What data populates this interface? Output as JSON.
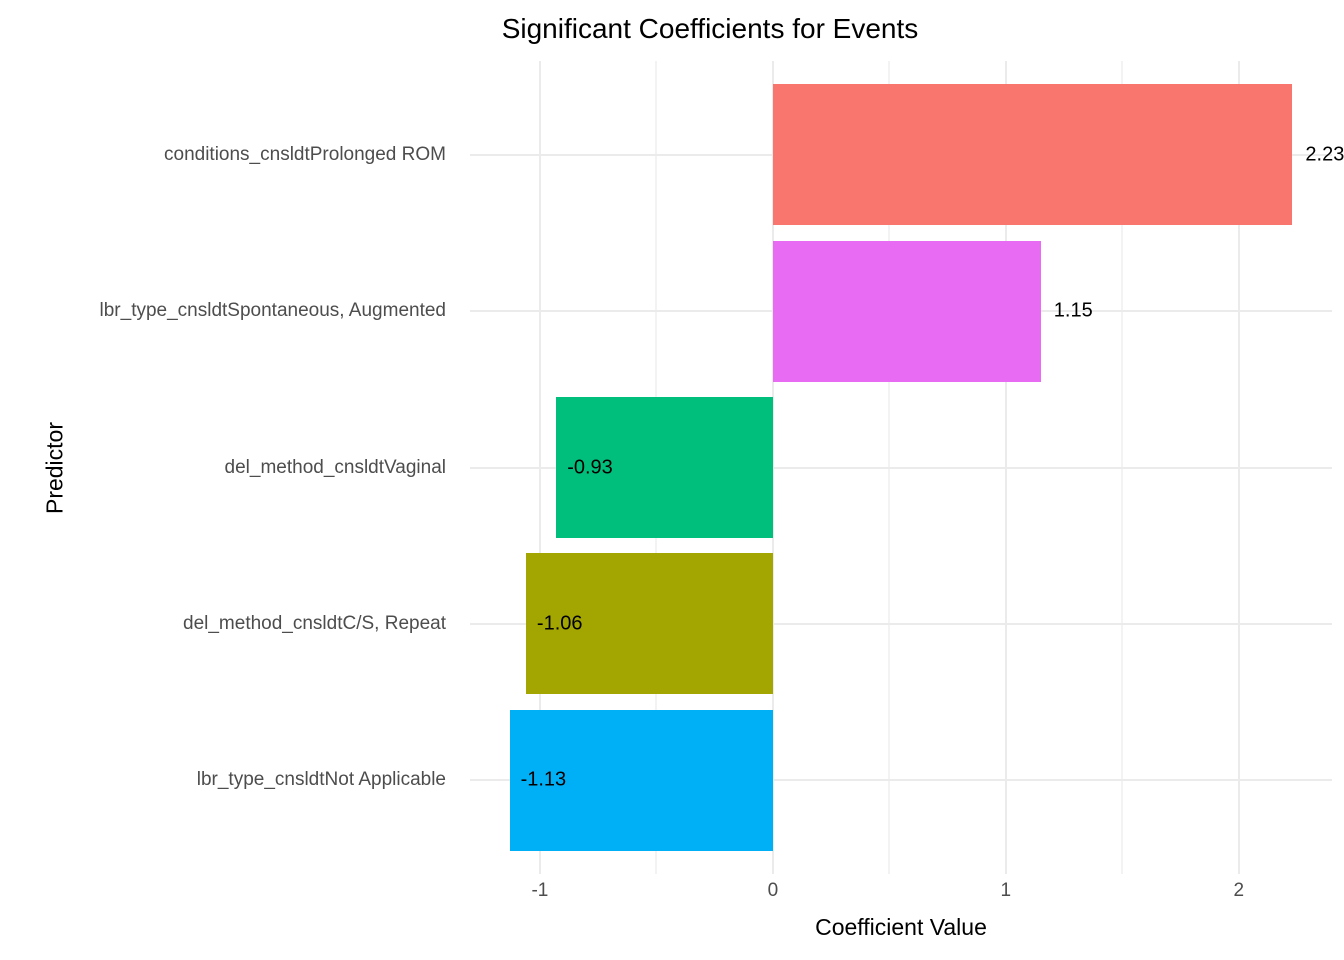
{
  "chart_data": {
    "type": "bar",
    "orientation": "horizontal",
    "title": "Significant Coefficients for Events",
    "xlabel": "Coefficient Value",
    "ylabel": "Predictor",
    "xlim": [
      -1.3,
      2.4
    ],
    "x_major_ticks": [
      -1,
      0,
      1,
      2
    ],
    "x_minor_gridlines": [
      -0.5,
      0.5,
      1.5
    ],
    "grid": true,
    "legend": "none",
    "bar_width_fraction": 0.9,
    "bars": [
      {
        "category": "conditions_cnsldtProlonged ROM",
        "value": 2.23,
        "label": "2.23",
        "color": "#F8766D"
      },
      {
        "category": "lbr_type_cnsldtSpontaneous, Augmented",
        "value": 1.15,
        "label": "1.15",
        "color": "#E76BF3"
      },
      {
        "category": "del_method_cnsldtVaginal",
        "value": -0.93,
        "label": "-0.93",
        "color": "#00BF7D"
      },
      {
        "category": "del_method_cnsldtC/S, Repeat",
        "value": -1.06,
        "label": "-1.06",
        "color": "#A3A500"
      },
      {
        "category": "lbr_type_cnsldtNot Applicable",
        "value": -1.13,
        "label": "-1.13",
        "color": "#00B0F6"
      }
    ]
  },
  "colors": {
    "background": "#FFFFFF",
    "grid_major": "#EBEBEB",
    "grid_minor": "#F3F3F3",
    "axis_text": "#4D4D4D",
    "title_text": "#000000",
    "value_text": "#000000"
  }
}
